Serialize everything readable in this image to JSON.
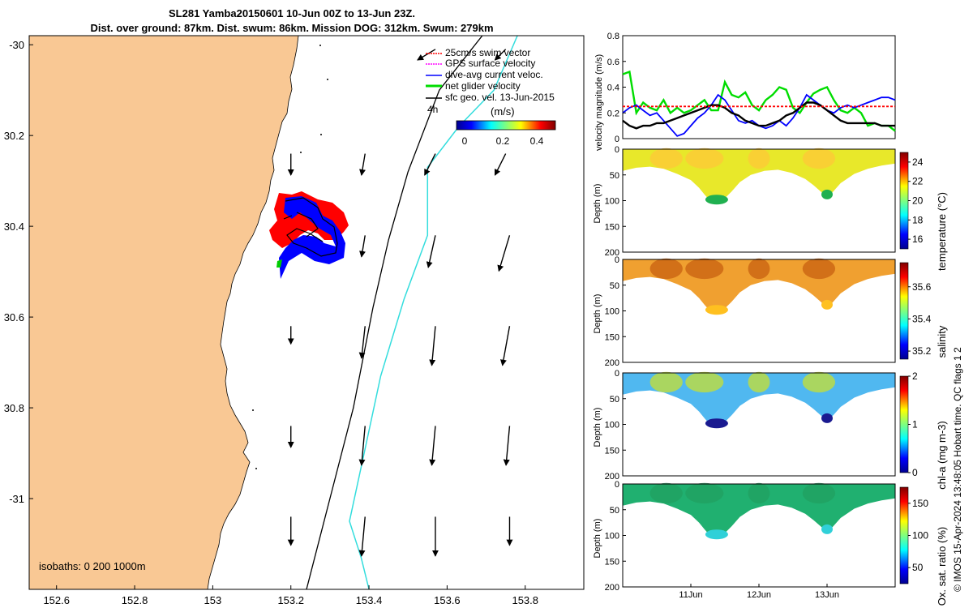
{
  "header": {
    "title_line1": "SL281 Yamba20150601 10-Jun 00Z to 13-Jun 23Z.",
    "title_line2": "Dist. over ground: 87km. Dist. swum: 86km. Mission DOG: 312km. Swum: 279km"
  },
  "credit": "© IMOS 15-Apr-2024 13:48:05 Hobart time. QC flags 1  2",
  "colors": {
    "land": "#f9c894",
    "swim": "#ff0000",
    "gps": "#ff00ff",
    "current": "#0000ff",
    "net": "#00dd00",
    "sfc": "#000000",
    "isobath200": "#000000",
    "isobath1000": "#33dddd"
  },
  "chart_data": [
    {
      "type": "map",
      "x_ticks": [
        "152.6",
        "152.8",
        "153",
        "153.2",
        "153.4",
        "153.6",
        "153.8"
      ],
      "y_ticks": [
        "-30",
        "30.2",
        "30.4",
        "30.6",
        "30.8",
        "-31"
      ],
      "xlim": [
        152.53,
        153.95
      ],
      "ylim": [
        -31.2,
        -29.98
      ],
      "legend": {
        "placement": "top-right",
        "items": [
          "25cm/s swim vector",
          "GPS surface velocity",
          "dive-avg current veloc.",
          "net glider velocity",
          "sfc geo. vel. 13-Jun-2015"
        ]
      },
      "time_note": "4h",
      "colorbar": {
        "label": "(m/s)",
        "ticks": [
          "0",
          "0.2",
          "0.4"
        ],
        "range": [
          0,
          0.5
        ]
      },
      "isobaths_label": "isobaths: 0   200  1000m",
      "sfc_vectors": [
        {
          "lon": 153.2,
          "lat": -30.24,
          "u": 0,
          "v": -0.12
        },
        {
          "lon": 153.39,
          "lat": -30.24,
          "u": -0.02,
          "v": -0.12
        },
        {
          "lon": 153.57,
          "lat": -30.24,
          "u": -0.06,
          "v": -0.12
        },
        {
          "lon": 153.75,
          "lat": -30.24,
          "u": -0.06,
          "v": -0.12
        },
        {
          "lon": 153.57,
          "lat": -30.01,
          "u": -0.1,
          "v": -0.06
        },
        {
          "lon": 153.75,
          "lat": -30.01,
          "u": -0.06,
          "v": -0.06
        },
        {
          "lon": 153.39,
          "lat": -30.42,
          "u": -0.02,
          "v": -0.12
        },
        {
          "lon": 153.57,
          "lat": -30.42,
          "u": -0.04,
          "v": -0.18
        },
        {
          "lon": 153.76,
          "lat": -30.42,
          "u": -0.06,
          "v": -0.2
        },
        {
          "lon": 153.2,
          "lat": -30.62,
          "u": 0,
          "v": -0.1
        },
        {
          "lon": 153.39,
          "lat": -30.62,
          "u": -0.02,
          "v": -0.18
        },
        {
          "lon": 153.57,
          "lat": -30.62,
          "u": -0.02,
          "v": -0.22
        },
        {
          "lon": 153.76,
          "lat": -30.62,
          "u": -0.04,
          "v": -0.22
        },
        {
          "lon": 153.2,
          "lat": -30.84,
          "u": 0,
          "v": -0.12
        },
        {
          "lon": 153.39,
          "lat": -30.84,
          "u": -0.02,
          "v": -0.22
        },
        {
          "lon": 153.57,
          "lat": -30.84,
          "u": -0.02,
          "v": -0.22
        },
        {
          "lon": 153.76,
          "lat": -30.84,
          "u": -0.02,
          "v": -0.22
        },
        {
          "lon": 153.2,
          "lat": -31.04,
          "u": 0,
          "v": -0.16
        },
        {
          "lon": 153.39,
          "lat": -31.04,
          "u": -0.02,
          "v": -0.22
        },
        {
          "lon": 153.57,
          "lat": -31.04,
          "u": 0,
          "v": -0.22
        },
        {
          "lon": 153.76,
          "lat": -31.04,
          "u": 0,
          "v": -0.16
        }
      ],
      "isobath_200": [
        [
          153.69,
          -29.98
        ],
        [
          153.58,
          -30.1
        ],
        [
          153.5,
          -30.28
        ],
        [
          153.45,
          -30.43
        ],
        [
          153.41,
          -30.58
        ],
        [
          153.36,
          -30.8
        ],
        [
          153.3,
          -31.0
        ],
        [
          153.24,
          -31.2
        ]
      ],
      "isobath_1000": [
        [
          153.78,
          -29.98
        ],
        [
          153.72,
          -30.1
        ],
        [
          153.63,
          -30.18
        ],
        [
          153.55,
          -30.27
        ],
        [
          153.55,
          -30.42
        ],
        [
          153.49,
          -30.56
        ],
        [
          153.43,
          -30.73
        ],
        [
          153.39,
          -30.89
        ],
        [
          153.35,
          -31.05
        ],
        [
          153.38,
          -31.13
        ],
        [
          153.4,
          -31.2
        ]
      ]
    },
    {
      "type": "line",
      "ylabel": "velocity magnitude (m/s)",
      "ylim": [
        0,
        0.8
      ],
      "yticks": [
        0,
        0.2,
        0.4,
        0.6,
        0.8
      ],
      "x": [
        0,
        0.5,
        1,
        1.5,
        2,
        2.5,
        3,
        3.5,
        4,
        4.5,
        5,
        5.5,
        6,
        6.5,
        7,
        7.5,
        8,
        8.5,
        9,
        9.5,
        10,
        10.5,
        11,
        11.5,
        12,
        12.5,
        13,
        13.5,
        14,
        14.5,
        15,
        15.5,
        16,
        16.5,
        17,
        17.5,
        18,
        18.5,
        19,
        19.5,
        20
      ],
      "series": [
        {
          "color": "#00dd00",
          "values": [
            0.5,
            0.52,
            0.2,
            0.28,
            0.24,
            0.22,
            0.3,
            0.2,
            0.24,
            0.2,
            0.22,
            0.26,
            0.3,
            0.22,
            0.22,
            0.44,
            0.34,
            0.32,
            0.36,
            0.26,
            0.22,
            0.3,
            0.34,
            0.4,
            0.38,
            0.24,
            0.2,
            0.28,
            0.35,
            0.38,
            0.4,
            0.3,
            0.22,
            0.2,
            0.24,
            0.2,
            0.1,
            0.12,
            0.1,
            0.1,
            0.06
          ]
        },
        {
          "color": "#0000ff",
          "values": [
            0.2,
            0.24,
            0.26,
            0.22,
            0.18,
            0.2,
            0.14,
            0.08,
            0.02,
            0.04,
            0.1,
            0.16,
            0.2,
            0.26,
            0.34,
            0.3,
            0.22,
            0.14,
            0.12,
            0.14,
            0.1,
            0.08,
            0.1,
            0.14,
            0.1,
            0.16,
            0.24,
            0.34,
            0.3,
            0.26,
            0.22,
            0.2,
            0.24,
            0.26,
            0.24,
            0.26,
            0.28,
            0.3,
            0.32,
            0.32,
            0.3
          ]
        },
        {
          "color": "#000000",
          "values": [
            0.14,
            0.1,
            0.08,
            0.1,
            0.1,
            0.12,
            0.12,
            0.14,
            0.16,
            0.18,
            0.2,
            0.22,
            0.24,
            0.26,
            0.26,
            0.24,
            0.2,
            0.18,
            0.14,
            0.12,
            0.1,
            0.1,
            0.12,
            0.14,
            0.18,
            0.2,
            0.24,
            0.28,
            0.28,
            0.26,
            0.22,
            0.18,
            0.14,
            0.12,
            0.12,
            0.12,
            0.12,
            0.12,
            0.1,
            0.1,
            0.1
          ]
        },
        {
          "color": "#ff0000",
          "dashed": true,
          "values": [
            0.25,
            0.25,
            0.25,
            0.25,
            0.25,
            0.25,
            0.25,
            0.25,
            0.25,
            0.25,
            0.25,
            0.25,
            0.25,
            0.25,
            0.25,
            0.25,
            0.25,
            0.25,
            0.25,
            0.25,
            0.25,
            0.25,
            0.25,
            0.25,
            0.25,
            0.25,
            0.25,
            0.25,
            0.25,
            0.25,
            0.25,
            0.25,
            0.25,
            0.25,
            0.25,
            0.25,
            0.25,
            0.25,
            0.25,
            0.25,
            0.25
          ]
        }
      ]
    },
    {
      "type": "heatmap",
      "section": "temperature",
      "ylabel": "Depth (m)",
      "yticks": [
        0,
        50,
        100,
        150,
        200
      ],
      "x_ticks": [
        "11Jun",
        "12Jun",
        "13Jun"
      ],
      "colorbar": {
        "label": "temperature (°C)",
        "ticks": [
          "24",
          "22",
          "20",
          "18",
          "16"
        ],
        "range": [
          15,
          25
        ]
      },
      "main_color": "#e8e82a",
      "deep_color": "#20b050",
      "accent_color": "#ffc838"
    },
    {
      "type": "heatmap",
      "section": "salinity",
      "ylabel": "Depth (m)",
      "yticks": [
        0,
        50,
        100,
        150,
        200
      ],
      "colorbar": {
        "label": "salinity",
        "ticks": [
          "35.6",
          "35.4",
          "35.2"
        ],
        "range": [
          35.15,
          35.75
        ]
      },
      "main_color": "#f0a030",
      "deep_color": "#ffc020",
      "accent_color": "#c86010"
    },
    {
      "type": "heatmap",
      "section": "chl-a",
      "ylabel": "Depth (m)",
      "yticks": [
        0,
        50,
        100,
        150,
        200
      ],
      "colorbar": {
        "label": "chl-a (mg m-3)",
        "ticks": [
          "2",
          "1",
          "0"
        ],
        "range": [
          0,
          2
        ]
      },
      "main_color": "#50b8f0",
      "deep_color": "#1a1a90",
      "accent_color": "#c8e030"
    },
    {
      "type": "heatmap",
      "section": "oxygen",
      "ylabel": "Depth (m)",
      "yticks": [
        0,
        50,
        100,
        150,
        200
      ],
      "colorbar": {
        "label": "Ox. sat. ratio (%)",
        "ticks": [
          "150",
          "100",
          "50"
        ],
        "range": [
          25,
          175
        ]
      },
      "main_color": "#20b070",
      "deep_color": "#30d0d8",
      "accent_color": "#20a060"
    }
  ]
}
